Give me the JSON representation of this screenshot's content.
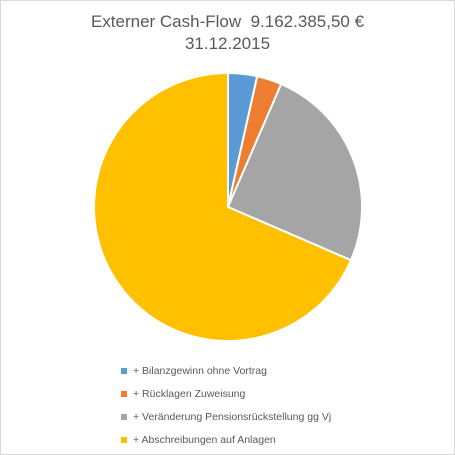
{
  "chart_data": {
    "type": "pie",
    "title": "Externer Cash-Flow  9.162.385,50 €",
    "subtitle": "31.12.2015",
    "legend_position": "bottom",
    "series": [
      {
        "name": "+ Bilanzgewinn ohne Vortrag",
        "value": 3.5,
        "color": "#5B9BD5"
      },
      {
        "name": "+ Rücklagen Zuweisung",
        "value": 3.0,
        "color": "#ED7D31"
      },
      {
        "name": "+ Veränderung Pensionsrückstellung gg Vj",
        "value": 25.0,
        "color": "#A5A5A5"
      },
      {
        "name": "+ Abschreibungen auf Anlagen",
        "value": 68.5,
        "color": "#FFC000"
      }
    ]
  }
}
